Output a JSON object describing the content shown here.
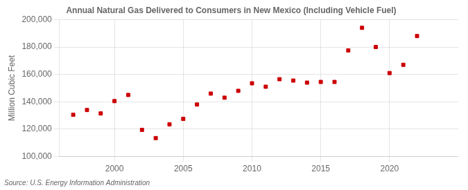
{
  "chart_data": {
    "type": "scatter",
    "title": "Annual Natural Gas Delivered to Consumers in New Mexico (Including Vehicle Fuel)",
    "ylabel": "Million Cubic Feet",
    "annotation": "Source: U.S. Energy Information Administration",
    "x": [
      1997,
      1998,
      1999,
      2000,
      2001,
      2002,
      2003,
      2004,
      2005,
      2006,
      2007,
      2008,
      2009,
      2010,
      2011,
      2012,
      2013,
      2014,
      2015,
      2016,
      2017,
      2018,
      2019,
      2020,
      2021,
      2022,
      2023
    ],
    "values": [
      130500,
      134000,
      131500,
      140500,
      145000,
      119500,
      113500,
      123500,
      127500,
      138000,
      146000,
      143000,
      148000,
      153500,
      151000,
      156500,
      155500,
      154000,
      154500,
      154500,
      177500,
      194000,
      180000,
      161000,
      167000,
      188000,
      null
    ],
    "color": "#cc0000",
    "marker": "square",
    "xlim": [
      1996,
      2025
    ],
    "xticks": [
      2000,
      2005,
      2010,
      2015,
      2020
    ],
    "ylim": [
      100000,
      200000
    ],
    "yticks": [
      {
        "value": 100000,
        "label": "100,000"
      },
      {
        "value": 120000,
        "label": "120,000"
      },
      {
        "value": 140000,
        "label": "140,000"
      },
      {
        "value": 160000,
        "label": "160,000"
      },
      {
        "value": 180000,
        "label": "180,000"
      },
      {
        "value": 200000,
        "label": "200,000"
      }
    ],
    "grid": true
  }
}
